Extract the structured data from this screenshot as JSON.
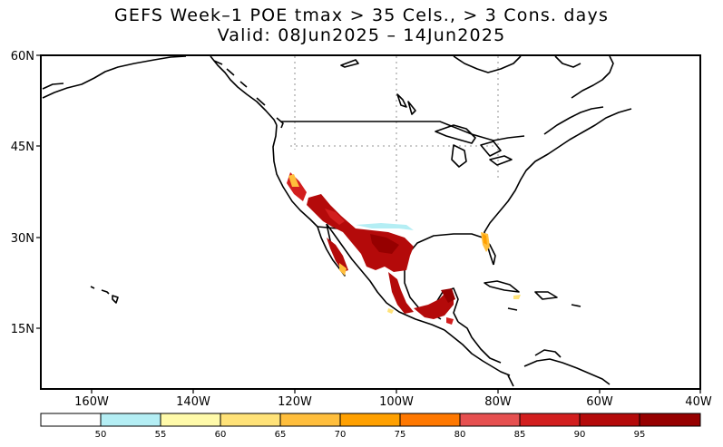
{
  "title": {
    "line1": "GEFS Week–1 POE tmax > 35 Cels., > 3 Cons. days",
    "line2": "Valid: 08Jun2025 – 14Jun2025"
  },
  "map": {
    "lon_range": [
      -170,
      -40
    ],
    "lat_range": [
      5,
      60
    ],
    "lat_labels": [
      "60N",
      "45N",
      "30N",
      "15N"
    ],
    "lon_labels": [
      "160W",
      "140W",
      "120W",
      "100W",
      "80W",
      "60W",
      "40W"
    ]
  },
  "colorbar": {
    "colors": [
      "#ffffff",
      "#b4eef4",
      "#fffaaa",
      "#ffe278",
      "#ffbe3c",
      "#ffa000",
      "#ff7800",
      "#e65050",
      "#d21e1e",
      "#b40a0a",
      "#960000"
    ],
    "labels": [
      "50",
      "55",
      "60",
      "65",
      "70",
      "75",
      "80",
      "85",
      "90",
      "95"
    ]
  }
}
